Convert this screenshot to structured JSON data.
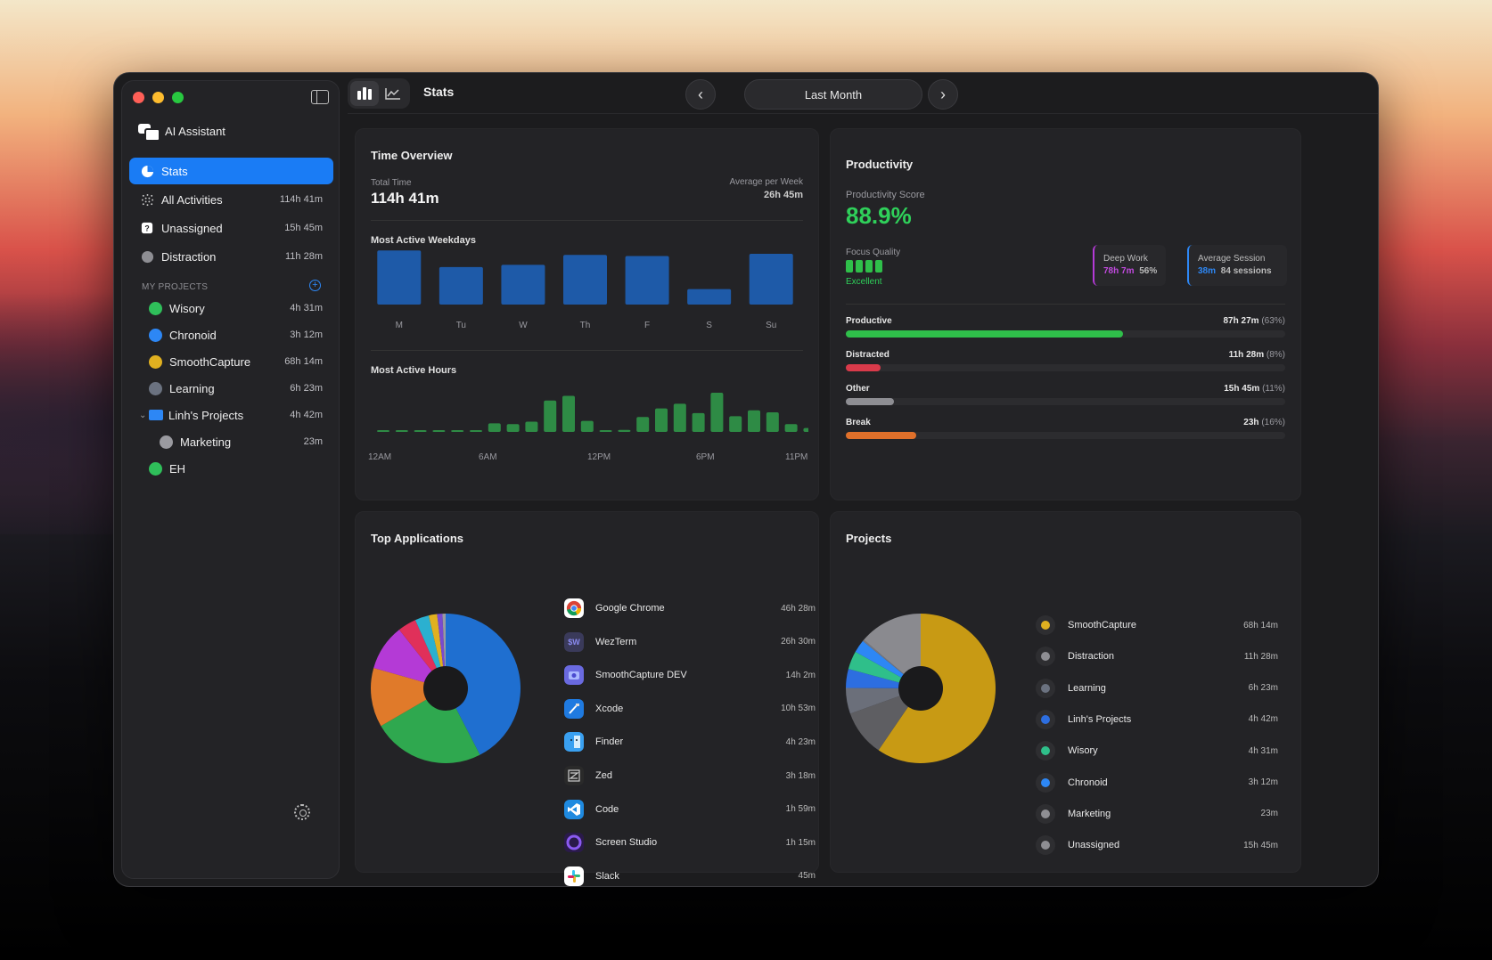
{
  "sidebar": {
    "ai_assistant": "AI Assistant",
    "nav": [
      {
        "label": "Stats",
        "time": ""
      },
      {
        "label": "All Activities",
        "time": "114h 41m"
      },
      {
        "label": "Unassigned",
        "time": "15h 45m"
      },
      {
        "label": "Distraction",
        "time": "11h 28m"
      }
    ],
    "projects_label": "MY PROJECTS",
    "projects": [
      {
        "label": "Wisory",
        "time": "4h 31m",
        "color": "#2fbf5a"
      },
      {
        "label": "Chronoid",
        "time": "3h 12m",
        "color": "#2d87f5"
      },
      {
        "label": "SmoothCapture",
        "time": "68h 14m",
        "color": "#e0b020"
      },
      {
        "label": "Learning",
        "time": "6h 23m",
        "color": "#6b7280"
      },
      {
        "label": "Linh's Projects",
        "time": "4h 42m",
        "color": "#2d87f5"
      },
      {
        "label": "Marketing",
        "time": "23m",
        "color": "#9a9aa0"
      },
      {
        "label": "EH",
        "time": "",
        "color": "#2fbf5a"
      }
    ]
  },
  "topbar": {
    "title": "Stats",
    "range": "Last Month",
    "prev_icon": "‹",
    "next_icon": "›"
  },
  "time_overview": {
    "title": "Time Overview",
    "total_label": "Total Time",
    "total_value": "114h 41m",
    "avg_label": "Average per Week",
    "avg_value": "26h 45m",
    "weekdays_title": "Most Active Weekdays",
    "hours_title": "Most Active Hours",
    "hour_axis": [
      "12AM",
      "6AM",
      "12PM",
      "6PM",
      "11PM"
    ]
  },
  "chart_data": [
    {
      "type": "bar",
      "title": "Most Active Weekdays",
      "categories": [
        "M",
        "Tu",
        "W",
        "Th",
        "F",
        "S",
        "Su"
      ],
      "values": [
        0.98,
        0.68,
        0.72,
        0.9,
        0.88,
        0.28,
        0.92
      ],
      "color": "#1e5aa8"
    },
    {
      "type": "bar",
      "title": "Most Active Hours",
      "x": [
        0,
        1,
        2,
        3,
        4,
        5,
        6,
        7,
        8,
        9,
        10,
        11,
        12,
        13,
        14,
        15,
        16,
        17,
        18,
        19,
        20,
        21,
        22,
        23
      ],
      "values": [
        0.02,
        0.02,
        0.02,
        0.02,
        0.02,
        0.02,
        0.22,
        0.2,
        0.26,
        0.8,
        0.92,
        0.28,
        0.03,
        0.05,
        0.38,
        0.6,
        0.72,
        0.48,
        1.0,
        0.4,
        0.55,
        0.5,
        0.2,
        0.1
      ],
      "color": "#2e8b45"
    },
    {
      "type": "pie",
      "title": "Top Applications",
      "labels": [
        "Google Chrome",
        "WezTerm",
        "SmoothCapture DEV",
        "Xcode",
        "Finder",
        "Zed",
        "Code",
        "Screen Studio",
        "Slack"
      ],
      "values": [
        46.47,
        26.5,
        14.03,
        10.88,
        4.38,
        3.3,
        1.98,
        1.25,
        0.75
      ],
      "colors": [
        "#1f6fd0",
        "#2fa84f",
        "#e07a2a",
        "#b43ad6",
        "#e0305a",
        "#2bb0d0",
        "#e0b020",
        "#7a4ad0",
        "#9a9aa0"
      ]
    },
    {
      "type": "pie",
      "title": "Projects",
      "labels": [
        "SmoothCapture",
        "Distraction",
        "Learning",
        "Linh's Projects",
        "Wisory",
        "Chronoid",
        "Marketing",
        "Unassigned"
      ],
      "values": [
        68.23,
        11.47,
        6.38,
        4.7,
        4.52,
        3.2,
        0.38,
        15.75
      ],
      "colors": [
        "#c89a14",
        "#5e5e62",
        "#6b6f7a",
        "#2d6ee0",
        "#2fbf8a",
        "#2d87f5",
        "#7a7a80",
        "#8a8a8f"
      ]
    }
  ],
  "productivity": {
    "title": "Productivity",
    "score_label": "Productivity Score",
    "score": "88.9%",
    "focus_label": "Focus Quality",
    "focus_value": "Excellent",
    "focus_level": 4,
    "deep_work_label": "Deep Work",
    "deep_work_time": "78h 7m",
    "deep_work_pct": "56%",
    "avg_session_label": "Average Session",
    "avg_session_time": "38m",
    "avg_session_count": "84 sessions",
    "bars": [
      {
        "label": "Productive",
        "value": "87h 27m",
        "pct": "(63%)",
        "fraction": 0.63,
        "color": "#2fbf4a"
      },
      {
        "label": "Distracted",
        "value": "11h 28m",
        "pct": "(8%)",
        "fraction": 0.08,
        "color": "#d93a4a"
      },
      {
        "label": "Other",
        "value": "15h 45m",
        "pct": "(11%)",
        "fraction": 0.11,
        "color": "#8e8e93"
      },
      {
        "label": "Break",
        "value": "23h",
        "pct": "(16%)",
        "fraction": 0.16,
        "color": "#e0702a"
      }
    ]
  },
  "top_apps": {
    "title": "Top Applications",
    "items": [
      {
        "label": "Google Chrome",
        "time": "46h 28m",
        "icon": "chrome-icon",
        "color": "#ffffff"
      },
      {
        "label": "WezTerm",
        "time": "26h 30m",
        "icon": "wezterm-icon",
        "color": "#3a3a5a"
      },
      {
        "label": "SmoothCapture DEV",
        "time": "14h 2m",
        "icon": "smoothcapture-icon",
        "color": "#6a6ae0"
      },
      {
        "label": "Xcode",
        "time": "10h 53m",
        "icon": "xcode-icon",
        "color": "#1f7ae0"
      },
      {
        "label": "Finder",
        "time": "4h 23m",
        "icon": "finder-icon",
        "color": "#3aa0f0"
      },
      {
        "label": "Zed",
        "time": "3h 18m",
        "icon": "zed-icon",
        "color": "#2a2a2a"
      },
      {
        "label": "Code",
        "time": "1h 59m",
        "icon": "vscode-icon",
        "color": "#1f8ae0"
      },
      {
        "label": "Screen Studio",
        "time": "1h 15m",
        "icon": "screen-studio-icon",
        "color": "#2a1a4a"
      },
      {
        "label": "Slack",
        "time": "45m",
        "icon": "slack-icon",
        "color": "#ffffff"
      }
    ]
  },
  "projects_card": {
    "title": "Projects",
    "items": [
      {
        "label": "SmoothCapture",
        "time": "68h 14m",
        "color": "#e0b020"
      },
      {
        "label": "Distraction",
        "time": "11h 28m",
        "color": "#8e8e93"
      },
      {
        "label": "Learning",
        "time": "6h 23m",
        "color": "#6b7280"
      },
      {
        "label": "Linh's Projects",
        "time": "4h 42m",
        "color": "#2d6ee0"
      },
      {
        "label": "Wisory",
        "time": "4h 31m",
        "color": "#2fbf8a"
      },
      {
        "label": "Chronoid",
        "time": "3h 12m",
        "color": "#2d87f5"
      },
      {
        "label": "Marketing",
        "time": "23m",
        "color": "#8e8e93"
      },
      {
        "label": "Unassigned",
        "time": "15h 45m",
        "color": "#8e8e93"
      }
    ]
  }
}
